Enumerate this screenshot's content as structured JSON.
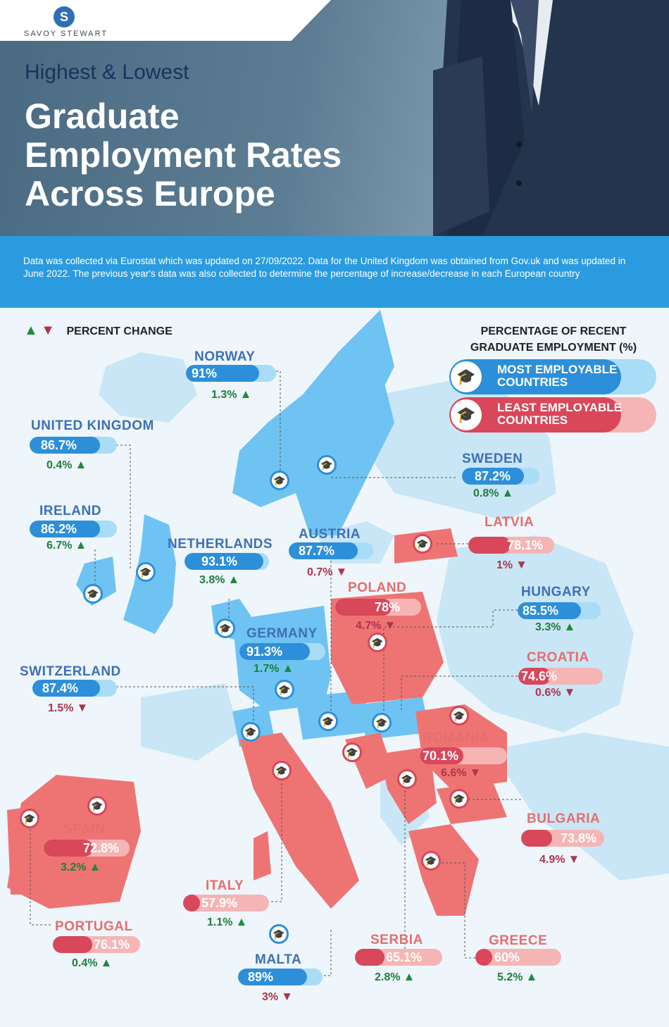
{
  "brand": {
    "name": "SAVOY STEWART",
    "logo_glyph": "S"
  },
  "header": {
    "subtitle": "Highest & Lowest",
    "title": "Graduate\nEmployment Rates\nAcross Europe"
  },
  "info_text": "Data was collected via Eurostat which was updated on 27/09/2022. Data for the United Kingdom was obtained from Gov.uk and was updated in June 2022. The previous year's data was also collected to determine the percentage of increase/decrease in each European country",
  "legend": {
    "change_label": "PERCENT CHANGE",
    "title": "PERCENTAGE OF RECENT\nGRADUATE EMPLOYMENT (%)",
    "most": "MOST EMPLOYABLE\nCOUNTRIES",
    "least": "LEAST EMPLOYABLE\nCOUNTRIES"
  },
  "colors": {
    "most": "#2d8fd9",
    "most_light": "#a9dcf7",
    "least": "#d8475a",
    "least_light": "#f6b5b5",
    "up": "#1e8a3c",
    "down": "#b0344a"
  },
  "icons": {
    "marker": "graduation-cap-icon",
    "up": "arrow-up-icon",
    "down": "arrow-down-icon"
  },
  "countries": [
    {
      "key": "norway",
      "name": "NORWAY",
      "rate": "91%",
      "rate_value": 91,
      "change": "1.3%",
      "direction": "up",
      "group": "most"
    },
    {
      "key": "united_kingdom",
      "name": "UNITED KINGDOM",
      "rate": "86.7%",
      "rate_value": 86.7,
      "change": "0.4%",
      "direction": "up",
      "group": "most"
    },
    {
      "key": "ireland",
      "name": "IRELAND",
      "rate": "86.2%",
      "rate_value": 86.2,
      "change": "6.7%",
      "direction": "up",
      "group": "most"
    },
    {
      "key": "netherlands",
      "name": "NETHERLANDS",
      "rate": "93.1%",
      "rate_value": 93.1,
      "change": "3.8%",
      "direction": "up",
      "group": "most"
    },
    {
      "key": "austria",
      "name": "AUSTRIA",
      "rate": "87.7%",
      "rate_value": 87.7,
      "change": "0.7%",
      "direction": "down",
      "group": "most"
    },
    {
      "key": "sweden",
      "name": "SWEDEN",
      "rate": "87.2%",
      "rate_value": 87.2,
      "change": "0.8%",
      "direction": "up",
      "group": "most"
    },
    {
      "key": "latvia",
      "name": "LATVIA",
      "rate": "78.1%",
      "rate_value": 78.1,
      "change": "1%",
      "direction": "down",
      "group": "least"
    },
    {
      "key": "poland",
      "name": "POLAND",
      "rate": "78%",
      "rate_value": 78,
      "change": "4.7%",
      "direction": "down",
      "group": "least"
    },
    {
      "key": "hungary",
      "name": "HUNGARY",
      "rate": "85.5%",
      "rate_value": 85.5,
      "change": "3.3%",
      "direction": "up",
      "group": "most"
    },
    {
      "key": "germany",
      "name": "GERMANY",
      "rate": "91.3%",
      "rate_value": 91.3,
      "change": "1.7%",
      "direction": "up",
      "group": "most"
    },
    {
      "key": "switzerland",
      "name": "SWITZERLAND",
      "rate": "87.4%",
      "rate_value": 87.4,
      "change": "1.5%",
      "direction": "down",
      "group": "most"
    },
    {
      "key": "croatia",
      "name": "CROATIA",
      "rate": "74.6%",
      "rate_value": 74.6,
      "change": "0.6%",
      "direction": "down",
      "group": "least"
    },
    {
      "key": "romania",
      "name": "ROMANIA",
      "rate": "70.1%",
      "rate_value": 70.1,
      "change": "6.6%",
      "direction": "down",
      "group": "least"
    },
    {
      "key": "spain",
      "name": "SPAIN",
      "rate": "72.8%",
      "rate_value": 72.8,
      "change": "3.2%",
      "direction": "up",
      "group": "least"
    },
    {
      "key": "bulgaria",
      "name": "BULGARIA",
      "rate": "73.8%",
      "rate_value": 73.8,
      "change": "4.9%",
      "direction": "down",
      "group": "least"
    },
    {
      "key": "italy",
      "name": "ITALY",
      "rate": "57.9%",
      "rate_value": 57.9,
      "change": "1.1%",
      "direction": "up",
      "group": "least"
    },
    {
      "key": "portugal",
      "name": "PORTUGAL",
      "rate": "76.1%",
      "rate_value": 76.1,
      "change": "0.4%",
      "direction": "up",
      "group": "least"
    },
    {
      "key": "serbia",
      "name": "SERBIA",
      "rate": "65.1%",
      "rate_value": 65.1,
      "change": "2.8%",
      "direction": "up",
      "group": "least"
    },
    {
      "key": "greece",
      "name": "GREECE",
      "rate": "60%",
      "rate_value": 60,
      "change": "5.2%",
      "direction": "up",
      "group": "least"
    },
    {
      "key": "malta",
      "name": "MALTA",
      "rate": "89%",
      "rate_value": 89,
      "change": "3%",
      "direction": "down",
      "group": "most"
    }
  ]
}
